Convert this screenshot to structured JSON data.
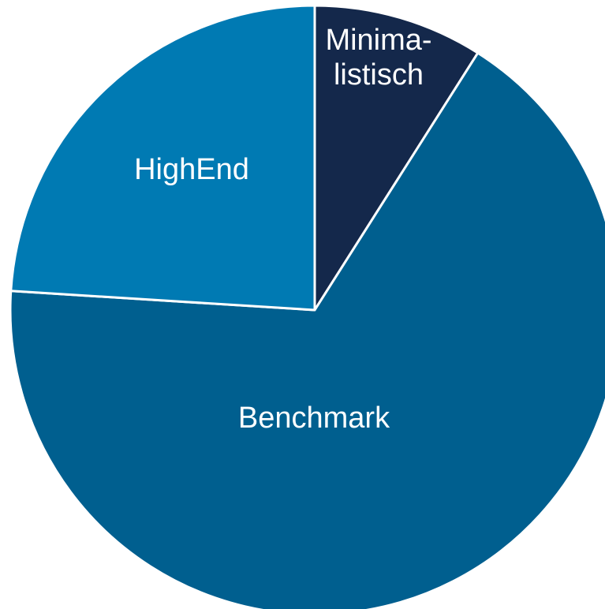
{
  "chart_data": {
    "type": "pie",
    "title": "",
    "start_angle_deg": 0,
    "direction": "clockwise",
    "slices": [
      {
        "label_lines": [
          "Minima-",
          "listisch"
        ],
        "value": 9,
        "color": "#14284b"
      },
      {
        "label_lines": [
          "Benchmark"
        ],
        "value": 67,
        "color": "#005f8f"
      },
      {
        "label_lines": [
          "HighEnd"
        ],
        "value": 24,
        "color": "#007ab3"
      }
    ],
    "slice_border_color": "#ffffff",
    "legend": "none"
  }
}
